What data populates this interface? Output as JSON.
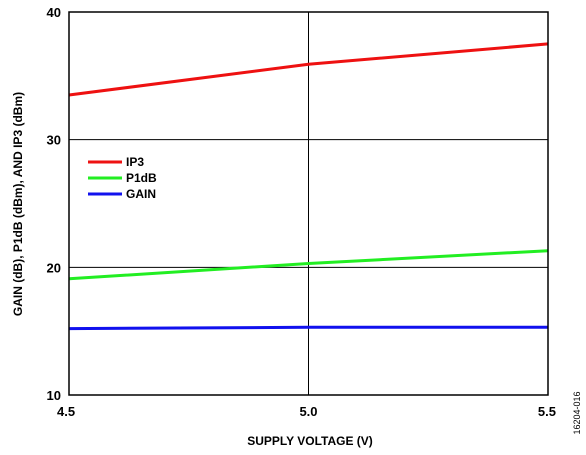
{
  "chart_data": {
    "type": "line",
    "xlabel": "SUPPLY VOLTAGE (V)",
    "ylabel": "GAIN (dB), P1dB (dBm), AND IP3 (dBm)",
    "xlim": [
      4.5,
      5.5
    ],
    "ylim": [
      10,
      40
    ],
    "x_ticks": [
      "4.5",
      "5.0",
      "5.5"
    ],
    "y_ticks": [
      "10",
      "20",
      "30",
      "40"
    ],
    "grid": true,
    "legend_position": "left",
    "series": [
      {
        "name": "IP3",
        "color": "#ee1111",
        "x": [
          4.5,
          5.0,
          5.5
        ],
        "y": [
          33.5,
          35.9,
          37.5
        ]
      },
      {
        "name": "P1dB",
        "color": "#22ee22",
        "x": [
          4.5,
          5.0,
          5.5
        ],
        "y": [
          19.1,
          20.3,
          21.3
        ]
      },
      {
        "name": "GAIN",
        "color": "#1111ee",
        "x": [
          4.5,
          5.0,
          5.5
        ],
        "y": [
          15.2,
          15.3,
          15.3
        ]
      }
    ],
    "figure_id": "16204-016"
  }
}
